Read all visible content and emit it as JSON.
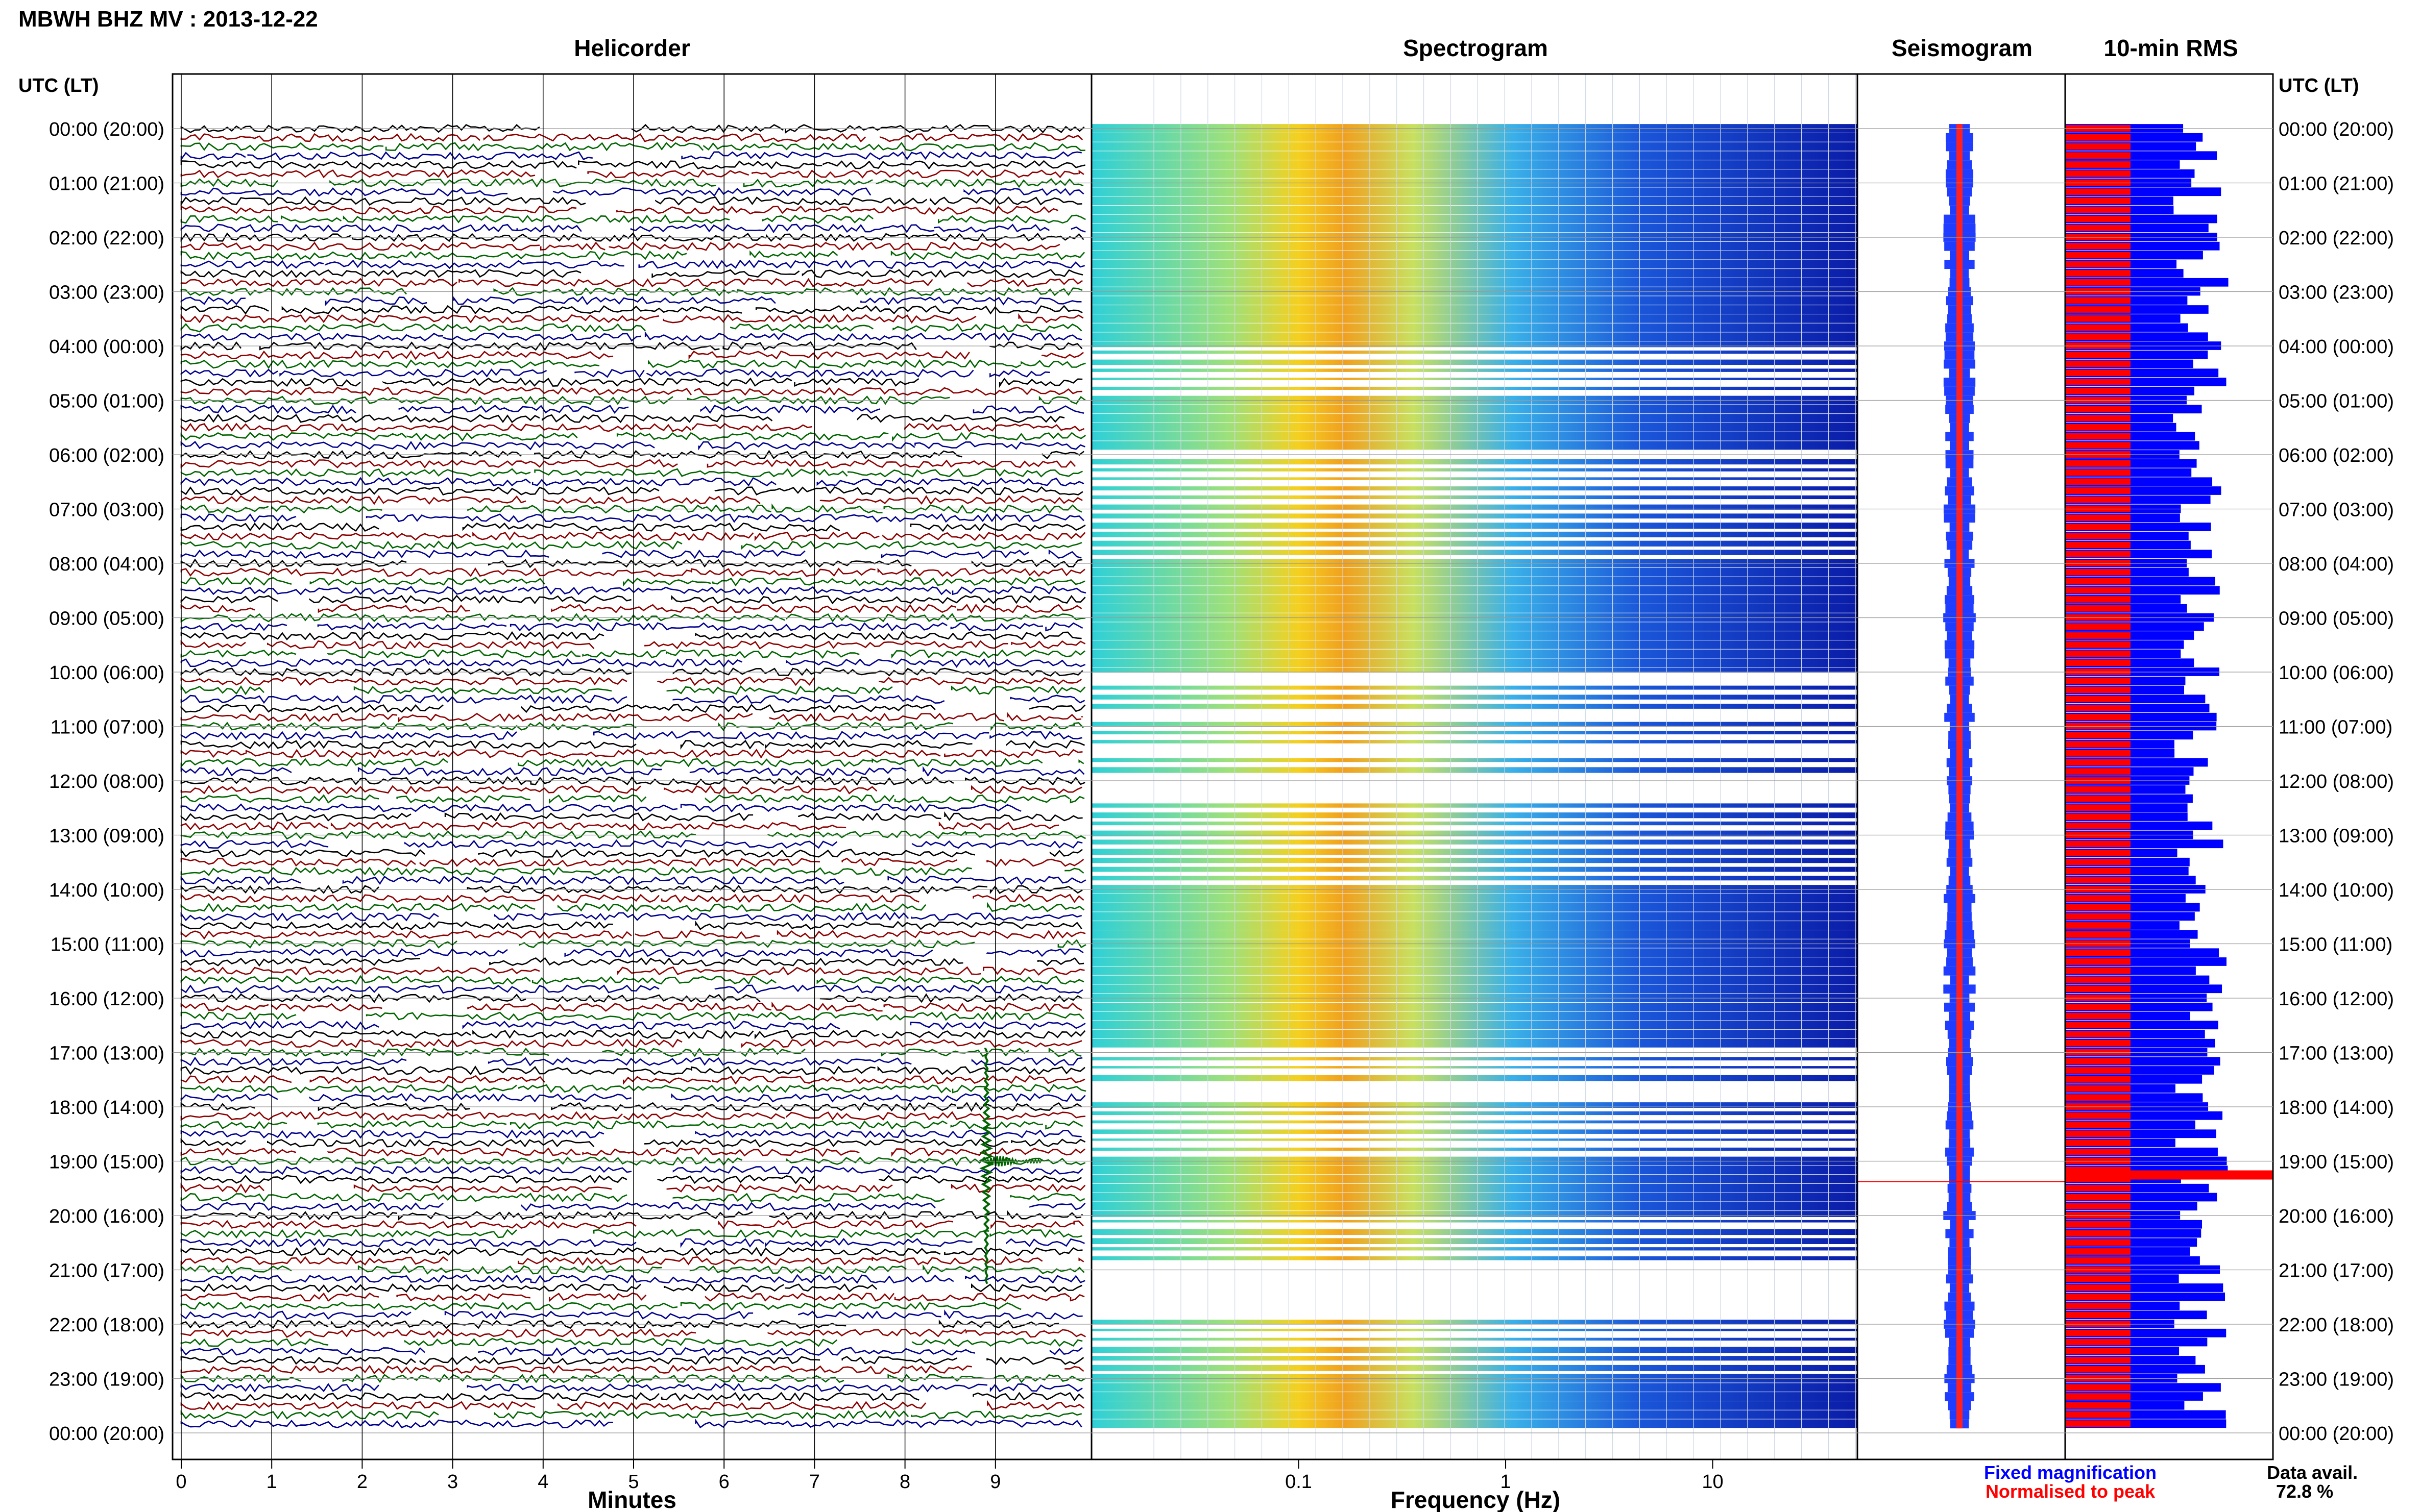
{
  "header": {
    "title": "MBWH BHZ MV : 2013-12-22"
  },
  "chart_data": [
    {
      "type": "line",
      "panel": "helicorder",
      "title": "Helicorder",
      "xlabel": "Minutes",
      "ylabel": "UTC (LT)",
      "x_ticks": [
        "0",
        "1",
        "2",
        "3",
        "4",
        "5",
        "6",
        "7",
        "8",
        "9"
      ],
      "xlim": [
        0,
        10
      ],
      "traces_per_hour": 6,
      "trace_colors": [
        "#000000",
        "#8b0000",
        "#006400",
        "#00008b"
      ],
      "event": {
        "hour_utc": "19:00",
        "minute": 8.9,
        "description_shown": "large green spike"
      },
      "grid": true
    },
    {
      "type": "heatmap",
      "panel": "spectrogram",
      "title": "Spectrogram",
      "xlabel": "Frequency (Hz)",
      "x_scale": "log",
      "xlim": [
        0.01,
        50
      ],
      "x_ticks": [
        "0.1",
        "1",
        "10"
      ],
      "x_tick_values": [
        0.1,
        1,
        10
      ],
      "strong_hours": [
        "00:00",
        "01:00",
        "02:00",
        "03:00",
        "05:00",
        "08:00",
        "09:00",
        "14:00",
        "15:00",
        "16:00",
        "19:00",
        "23:00"
      ],
      "grid": true
    },
    {
      "type": "line",
      "panel": "seismogram",
      "title": "Seismogram",
      "series": [
        {
          "name": "Fixed magnification",
          "color": "#0000ff"
        },
        {
          "name": "Normalised to peak",
          "color": "#ff0000"
        }
      ]
    },
    {
      "type": "bar",
      "panel": "rms",
      "title": "10-min RMS",
      "orientation": "horizontal",
      "series": [
        {
          "name": "Fixed magnification",
          "color": "#0000ff"
        },
        {
          "name": "Normalised to peak",
          "color": "#ff0000"
        }
      ],
      "peak_hour": "19:00"
    }
  ],
  "time_axis": {
    "header": "UTC (LT)",
    "labels": [
      "00:00 (20:00)",
      "01:00 (21:00)",
      "02:00 (22:00)",
      "03:00 (23:00)",
      "04:00 (00:00)",
      "05:00 (01:00)",
      "06:00 (02:00)",
      "07:00 (03:00)",
      "08:00 (04:00)",
      "09:00 (05:00)",
      "10:00 (06:00)",
      "11:00 (07:00)",
      "12:00 (08:00)",
      "13:00 (09:00)",
      "14:00 (10:00)",
      "15:00 (11:00)",
      "16:00 (12:00)",
      "17:00 (13:00)",
      "18:00 (14:00)",
      "19:00 (15:00)",
      "20:00 (16:00)",
      "21:00 (17:00)",
      "22:00 (18:00)",
      "23:00 (19:00)",
      "00:00 (20:00)"
    ]
  },
  "legend": {
    "fixed_label": "Fixed magnification",
    "fixed_color": "#0000ff",
    "normalised_label": "Normalised to peak",
    "normalised_color": "#ff0000"
  },
  "availability": {
    "label": "Data avail.",
    "value": "72.8 %"
  }
}
